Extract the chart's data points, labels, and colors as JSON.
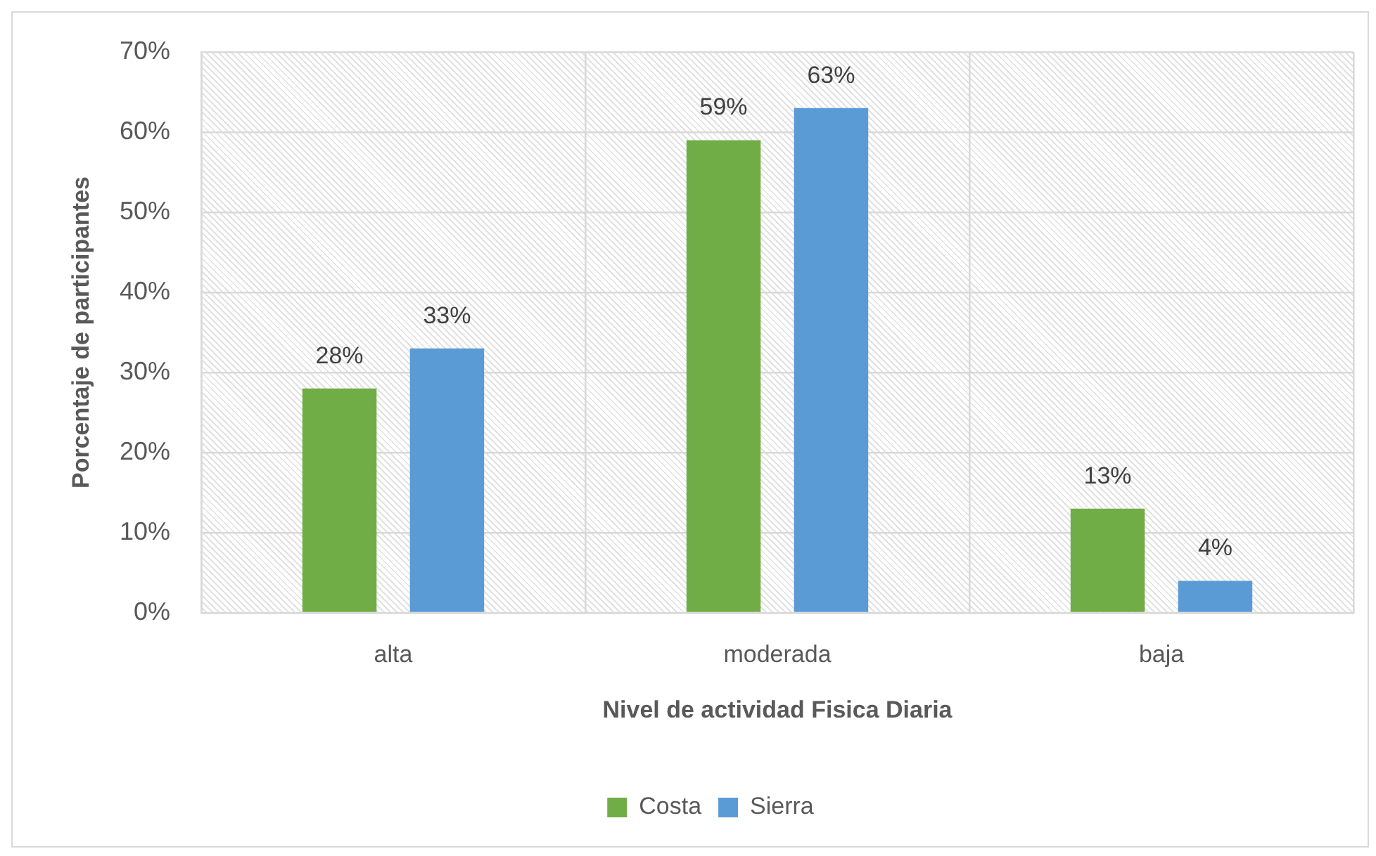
{
  "chart_data": {
    "type": "bar",
    "xlabel": "Nivel de actividad Fisica Diaria",
    "ylabel": "Porcentaje de participantes",
    "categories": [
      "alta",
      "moderada",
      "baja"
    ],
    "series": [
      {
        "name": "Costa",
        "color": "#70ad47",
        "values": [
          28,
          59,
          13
        ],
        "value_labels": [
          "28%",
          "59%",
          "13%"
        ]
      },
      {
        "name": "Sierra",
        "color": "#5b9bd5",
        "values": [
          33,
          63,
          4
        ],
        "value_labels": [
          "33%",
          "63%",
          "4%"
        ]
      }
    ],
    "ylim": [
      0,
      70
    ],
    "yticks": [
      {
        "value": 0,
        "label": "0%"
      },
      {
        "value": 10,
        "label": "10%"
      },
      {
        "value": 20,
        "label": "20%"
      },
      {
        "value": 30,
        "label": "30%"
      },
      {
        "value": 40,
        "label": "40%"
      },
      {
        "value": 50,
        "label": "50%"
      },
      {
        "value": 60,
        "label": "60%"
      },
      {
        "value": 70,
        "label": "70%"
      }
    ],
    "grid": true,
    "legend": "bottom"
  }
}
